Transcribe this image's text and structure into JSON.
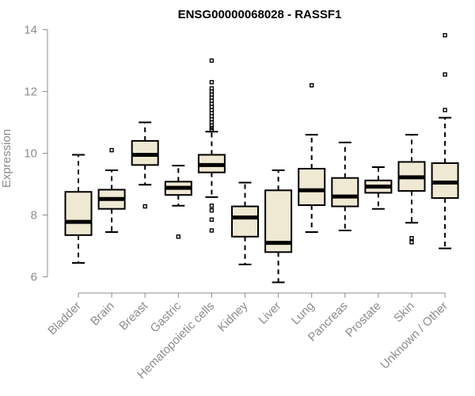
{
  "chart_data": {
    "type": "box",
    "title": "ENSG00000068028 - RASSF1",
    "xlabel": "",
    "ylabel": "Expression",
    "ylim": [
      5.7,
      14.2
    ],
    "yticks": [
      6,
      8,
      10,
      12,
      14
    ],
    "grid": false,
    "colors": {
      "box_fill": "#efe8d2",
      "box_stroke": "#000000",
      "axis": "#8c8c8c"
    },
    "categories": [
      "Bladder",
      "Brain",
      "Breast",
      "Gastric",
      "Hematopoietic cells",
      "Kidney",
      "Liver",
      "Lung",
      "Pancreas",
      "Prostate",
      "Skin",
      "Unknown / Other"
    ],
    "boxes": [
      {
        "category": "Bladder",
        "whisker_low": 6.45,
        "q1": 7.35,
        "median": 7.78,
        "q3": 8.75,
        "whisker_high": 9.95,
        "outliers": []
      },
      {
        "category": "Brain",
        "whisker_low": 7.45,
        "q1": 8.2,
        "median": 8.52,
        "q3": 8.82,
        "whisker_high": 9.45,
        "outliers": [
          10.1
        ]
      },
      {
        "category": "Breast",
        "whisker_low": 8.98,
        "q1": 9.62,
        "median": 9.95,
        "q3": 10.4,
        "whisker_high": 11.0,
        "outliers": [
          8.28
        ]
      },
      {
        "category": "Gastric",
        "whisker_low": 8.3,
        "q1": 8.65,
        "median": 8.88,
        "q3": 9.08,
        "whisker_high": 9.6,
        "outliers": [
          7.3
        ]
      },
      {
        "category": "Hematopoietic cells",
        "whisker_low": 8.58,
        "q1": 9.38,
        "median": 9.62,
        "q3": 9.95,
        "whisker_high": 10.7,
        "outliers": [
          7.5,
          7.85,
          8.15,
          8.3,
          10.75,
          10.82,
          10.9,
          11.0,
          11.1,
          11.2,
          11.3,
          11.4,
          11.5,
          11.6,
          11.7,
          11.8,
          11.9,
          12.0,
          12.1,
          12.3,
          13.0
        ]
      },
      {
        "category": "Kidney",
        "whisker_low": 6.4,
        "q1": 7.3,
        "median": 7.92,
        "q3": 8.28,
        "whisker_high": 9.05,
        "outliers": []
      },
      {
        "category": "Liver",
        "whisker_low": 5.82,
        "q1": 6.8,
        "median": 7.1,
        "q3": 8.8,
        "whisker_high": 9.45,
        "outliers": []
      },
      {
        "category": "Lung",
        "whisker_low": 7.45,
        "q1": 8.32,
        "median": 8.8,
        "q3": 9.5,
        "whisker_high": 10.6,
        "outliers": [
          12.2
        ]
      },
      {
        "category": "Pancreas",
        "whisker_low": 7.5,
        "q1": 8.28,
        "median": 8.6,
        "q3": 9.2,
        "whisker_high": 10.35,
        "outliers": []
      },
      {
        "category": "Prostate",
        "whisker_low": 8.2,
        "q1": 8.72,
        "median": 8.92,
        "q3": 9.12,
        "whisker_high": 9.55,
        "outliers": []
      },
      {
        "category": "Skin",
        "whisker_low": 7.75,
        "q1": 8.78,
        "median": 9.22,
        "q3": 9.72,
        "whisker_high": 10.6,
        "outliers": [
          7.12,
          7.25
        ]
      },
      {
        "category": "Unknown / Other",
        "whisker_low": 6.92,
        "q1": 8.55,
        "median": 9.05,
        "q3": 9.68,
        "whisker_high": 11.15,
        "outliers": [
          11.4,
          12.55,
          13.82
        ]
      }
    ]
  }
}
